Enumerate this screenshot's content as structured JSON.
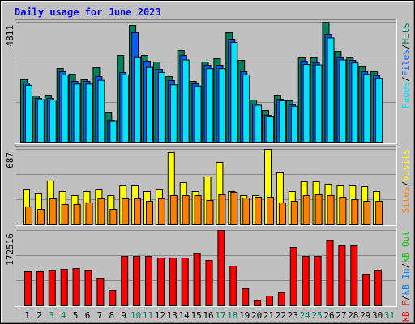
{
  "chart_data": [
    {
      "type": "bar",
      "title": "Daily usage for June 2023",
      "ylim": [
        0,
        4811
      ],
      "yticks": [
        4811
      ],
      "legend_separator": "/",
      "series": [
        {
          "name": "Hits",
          "color": "#00805c",
          "values": [
            2503,
            1853,
            1885,
            2958,
            2730,
            2503,
            2990,
            1203,
            3478,
            4681,
            3478,
            3218,
            2633,
            3673,
            2438,
            3218,
            3348,
            4388,
            3283,
            1690,
            1268,
            1885,
            1658,
            3413,
            3413,
            4811,
            3641,
            3413,
            3023,
            2828,
            null
          ]
        },
        {
          "name": "Files",
          "color": "#0060ff",
          "values": [
            2373,
            1755,
            1755,
            2828,
            2438,
            2438,
            2633,
            878,
            2795,
            4388,
            3250,
            2925,
            2470,
            3478,
            2340,
            3088,
            3088,
            4128,
            2828,
            1528,
            1073,
            1723,
            1495,
            3250,
            3185,
            4323,
            3413,
            3283,
            2828,
            2665,
            null
          ]
        },
        {
          "name": "Pages",
          "color": "#00e0ff",
          "values": [
            2280,
            1700,
            1690,
            2700,
            2330,
            2330,
            2480,
            860,
            2700,
            3420,
            3000,
            2800,
            2300,
            3300,
            2250,
            2950,
            2950,
            4000,
            2700,
            1480,
            1040,
            1660,
            1440,
            3120,
            3100,
            4180,
            3300,
            3180,
            2720,
            2560,
            null
          ]
        }
      ]
    },
    {
      "type": "bar",
      "ylim": [
        0,
        687
      ],
      "yticks": [
        687
      ],
      "legend_separator": "/",
      "series": [
        {
          "name": "Visits",
          "color": "#ffff00",
          "values": [
            325,
            288,
            399,
            303,
            266,
            303,
            325,
            266,
            355,
            355,
            303,
            325,
            658,
            384,
            303,
            436,
            569,
            303,
            266,
            266,
            687,
            480,
            303,
            392,
            392,
            370,
            355,
            355,
            347,
            303,
            null
          ]
        },
        {
          "name": "Sites",
          "color": "#ff8000",
          "values": [
            163,
            140,
            236,
            185,
            185,
            200,
            236,
            140,
            236,
            236,
            214,
            236,
            266,
            266,
            266,
            222,
            273,
            296,
            244,
            251,
            251,
            200,
            214,
            266,
            273,
            266,
            251,
            229,
            214,
            214,
            null
          ]
        }
      ]
    },
    {
      "type": "bar",
      "ylim": [
        0,
        172516
      ],
      "yticks": [
        172516
      ],
      "legend_separator": "/",
      "categories": [
        "1",
        "2",
        "3",
        "4",
        "5",
        "6",
        "7",
        "8",
        "9",
        "10",
        "11",
        "12",
        "13",
        "14",
        "15",
        "16",
        "17",
        "18",
        "19",
        "20",
        "21",
        "22",
        "23",
        "24",
        "25",
        "26",
        "27",
        "28",
        "29",
        "30",
        "31"
      ],
      "category_colors": [
        "#000000",
        "#000000",
        "#00805c",
        "#00805c",
        "#000000",
        "#000000",
        "#000000",
        "#000000",
        "#000000",
        "#00805c",
        "#00805c",
        "#000000",
        "#000000",
        "#000000",
        "#000000",
        "#000000",
        "#00805c",
        "#00805c",
        "#000000",
        "#000000",
        "#000000",
        "#000000",
        "#000000",
        "#00805c",
        "#00805c",
        "#000000",
        "#000000",
        "#000000",
        "#000000",
        "#000000",
        "#00805c"
      ],
      "series": [
        {
          "name": "kB Out",
          "color": "#00c000"
        },
        {
          "name": "kB In",
          "color": "#0080ff"
        },
        {
          "name": "kB F",
          "color": "#ff0000",
          "values": [
            77910,
            77910,
            81620,
            83475,
            85330,
            81620,
            63070,
            35245,
            113155,
            113155,
            113155,
            109445,
            109445,
            109445,
            120575,
            103880,
            172516,
            90895,
            38955,
            12985,
            22260,
            29680,
            133560,
            113155,
            113155,
            150255,
            137270,
            137270,
            72345,
            81620,
            null
          ]
        }
      ]
    }
  ]
}
